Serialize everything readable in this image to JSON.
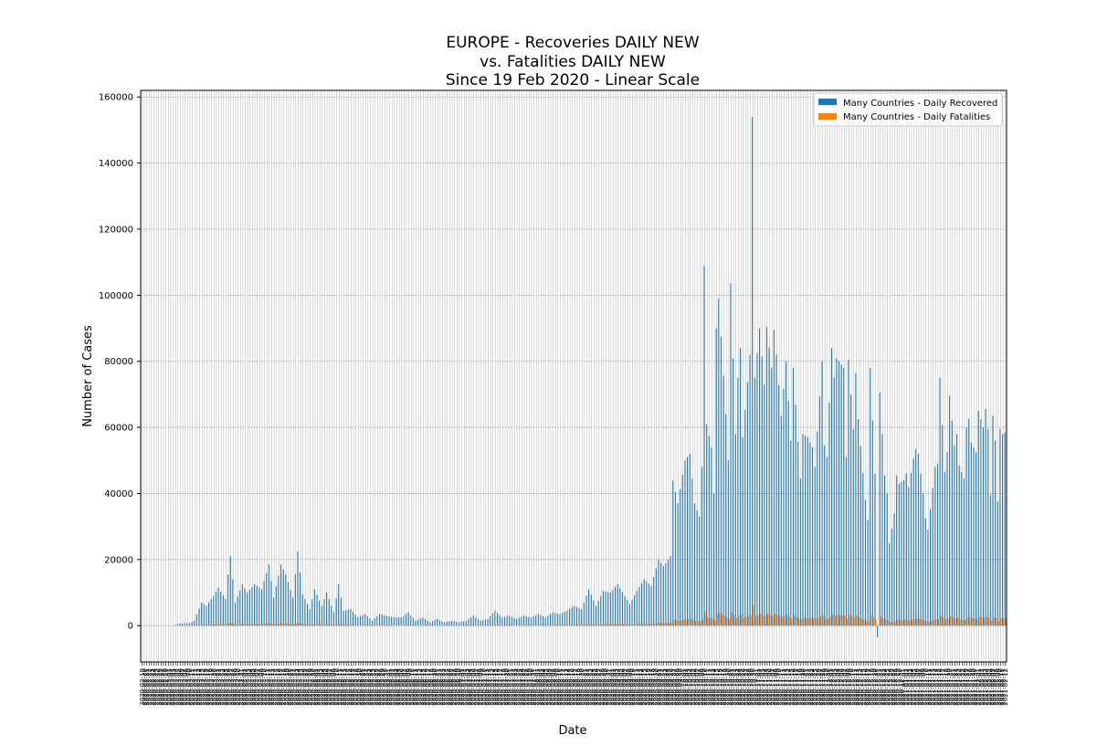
{
  "chart_data": {
    "type": "bar",
    "title_lines": [
      "EUROPE - Recoveries DAILY NEW",
      "vs. Fatalities DAILY NEW",
      "Since 19 Feb 2020 - Linear Scale"
    ],
    "xlabel": "Date",
    "ylabel": "Number of Cases",
    "ylim": [
      -11000,
      162000
    ],
    "yticks": [
      0,
      20000,
      40000,
      60000,
      80000,
      100000,
      120000,
      140000,
      160000
    ],
    "ytick_labels": [
      "0",
      "20000",
      "40000",
      "60000",
      "80000",
      "100000",
      "120000",
      "140000",
      "160000"
    ],
    "grid": true,
    "legend_position": "top-right",
    "start_date": "2020-02-19",
    "colors": {
      "recovered": "#1f77b4",
      "fatalities": "#ff7f0e",
      "grid": "#b0b0b0"
    },
    "series": [
      {
        "name": "Many Countries - Daily Recovered",
        "color": "#1f77b4",
        "values": [
          0,
          0,
          0,
          0,
          0,
          0,
          0,
          0,
          0,
          0,
          0,
          0,
          0,
          0,
          0,
          0,
          0,
          0,
          0,
          0,
          0,
          0,
          0,
          0,
          0,
          0,
          0,
          0,
          0,
          0,
          0,
          0,
          0,
          0,
          0,
          0,
          0,
          0,
          0,
          0,
          0,
          0,
          0,
          0,
          0,
          0,
          0,
          0,
          0,
          0,
          0,
          0,
          0,
          0,
          0,
          0,
          0,
          0,
          0,
          0,
          0,
          0,
          0,
          0,
          0,
          0,
          0,
          0,
          0,
          0,
          0,
          0,
          0,
          0,
          0,
          0,
          0,
          0,
          0,
          0,
          0,
          0,
          0,
          0,
          0,
          0,
          0,
          0,
          0,
          0,
          0,
          0,
          0,
          0,
          0,
          0,
          0,
          0,
          0,
          0,
          0,
          0,
          0,
          0,
          0,
          0,
          0,
          0,
          0,
          0,
          0,
          0,
          0,
          0,
          0,
          0,
          0,
          0,
          0,
          0,
          0,
          0,
          0,
          0,
          0,
          0,
          0,
          0,
          0,
          0,
          0,
          0,
          0,
          0,
          0,
          0,
          0,
          0,
          0,
          0,
          0,
          0,
          0,
          0,
          0,
          0,
          0,
          0,
          0,
          0,
          0,
          0,
          0,
          0,
          0,
          0,
          0,
          0,
          0,
          0,
          0,
          0,
          0,
          0,
          0,
          0,
          0,
          0,
          0,
          0,
          0,
          0,
          0,
          0,
          0,
          0,
          0,
          0,
          0,
          0,
          0,
          0,
          0,
          0,
          0,
          0,
          0,
          0,
          0,
          0,
          0,
          0,
          0,
          0,
          0,
          0,
          0,
          0,
          0,
          0,
          0,
          0,
          0,
          0,
          0,
          0,
          0,
          0,
          0,
          0,
          0,
          0,
          0,
          0,
          0,
          0,
          0,
          0,
          0,
          0,
          0,
          0,
          0,
          0,
          0,
          0,
          0,
          0,
          0,
          0,
          0,
          0,
          0,
          0,
          0,
          0,
          0,
          0,
          0,
          0,
          0,
          0,
          0,
          0,
          0,
          0,
          0,
          0,
          0,
          0,
          0,
          0,
          0,
          0,
          0,
          0,
          0,
          0,
          0,
          0,
          0,
          0,
          0,
          0,
          0,
          0,
          0,
          0,
          0,
          0,
          0,
          0,
          0,
          0,
          0,
          0,
          0,
          0,
          0,
          0,
          0,
          0,
          0,
          0,
          0,
          0,
          0,
          0,
          0,
          0,
          0,
          0,
          0,
          0,
          0,
          0,
          0,
          0,
          0,
          0,
          0,
          0,
          0,
          0,
          0,
          0,
          0,
          0,
          0,
          0,
          0,
          0,
          0,
          0,
          0,
          0,
          0,
          0,
          0,
          0,
          0,
          0,
          0,
          0,
          0,
          0,
          0,
          0,
          0,
          0,
          0,
          0,
          0,
          0,
          0,
          0,
          0,
          0,
          0,
          0,
          0,
          0,
          0,
          0,
          0,
          0,
          0,
          0,
          0,
          0,
          0,
          0,
          0,
          0,
          0,
          0,
          0,
          0,
          0,
          0,
          0,
          0,
          0,
          0,
          0,
          0,
          0,
          0,
          0,
          0,
          0,
          0,
          0,
          0,
          0,
          0,
          0,
          0,
          0,
          0,
          0,
          0,
          0,
          0,
          0,
          0,
          0,
          0,
          0,
          0,
          0,
          0,
          0,
          0,
          0,
          0,
          0,
          0,
          0,
          0,
          0,
          0,
          0,
          0,
          0,
          0,
          0,
          0,
          0,
          0,
          0,
          0,
          0,
          0,
          0,
          0,
          0,
          0,
          0,
          0,
          0,
          0,
          0,
          0,
          0,
          0,
          0,
          0,
          0,
          0,
          0,
          0,
          0
        ]
      },
      {
        "name": "Many Countries - Daily Fatalities",
        "color": "#ff7f0e",
        "values": []
      }
    ],
    "recovered_anchor_points": [
      [
        0,
        0
      ],
      [
        13,
        0
      ],
      [
        16,
        600
      ],
      [
        20,
        800
      ],
      [
        22,
        1500
      ],
      [
        25,
        7000
      ],
      [
        27,
        6000
      ],
      [
        30,
        9000
      ],
      [
        32,
        11500
      ],
      [
        35,
        8000
      ],
      [
        36,
        15500
      ],
      [
        37,
        21000
      ],
      [
        39,
        7000
      ],
      [
        42,
        12500
      ],
      [
        44,
        10000
      ],
      [
        47,
        12500
      ],
      [
        50,
        11000
      ],
      [
        53,
        18500
      ],
      [
        55,
        8500
      ],
      [
        58,
        18500
      ],
      [
        60,
        15500
      ],
      [
        63,
        8500
      ],
      [
        65,
        22500
      ],
      [
        67,
        9500
      ],
      [
        70,
        5000
      ],
      [
        72,
        11000
      ],
      [
        75,
        6000
      ],
      [
        77,
        10000
      ],
      [
        80,
        4000
      ],
      [
        82,
        12500
      ],
      [
        84,
        4500
      ],
      [
        87,
        5000
      ],
      [
        90,
        2500
      ],
      [
        93,
        3500
      ],
      [
        96,
        1500
      ],
      [
        99,
        3500
      ],
      [
        102,
        3000
      ],
      [
        105,
        2500
      ],
      [
        108,
        2500
      ],
      [
        111,
        4000
      ],
      [
        114,
        1500
      ],
      [
        117,
        2500
      ],
      [
        120,
        1000
      ],
      [
        123,
        2000
      ],
      [
        126,
        1000
      ],
      [
        129,
        1500
      ],
      [
        132,
        1000
      ],
      [
        135,
        1500
      ],
      [
        138,
        3000
      ],
      [
        141,
        1500
      ],
      [
        144,
        2000
      ],
      [
        147,
        4500
      ],
      [
        150,
        2500
      ],
      [
        153,
        3000
      ],
      [
        156,
        2000
      ],
      [
        159,
        3000
      ],
      [
        162,
        2500
      ],
      [
        165,
        3500
      ],
      [
        168,
        2500
      ],
      [
        171,
        4000
      ],
      [
        174,
        3500
      ],
      [
        177,
        4500
      ],
      [
        180,
        6000
      ],
      [
        183,
        5000
      ],
      [
        186,
        11000
      ],
      [
        189,
        6000
      ],
      [
        192,
        10500
      ],
      [
        195,
        10000
      ],
      [
        198,
        12500
      ],
      [
        201,
        9000
      ],
      [
        203,
        6500
      ],
      [
        206,
        10500
      ],
      [
        209,
        14000
      ],
      [
        212,
        12000
      ],
      [
        215,
        20000
      ],
      [
        217,
        18000
      ],
      [
        220,
        21000
      ],
      [
        221,
        44000
      ],
      [
        223,
        37000
      ],
      [
        226,
        50000
      ],
      [
        228,
        52000
      ],
      [
        230,
        37000
      ],
      [
        232,
        33000
      ],
      [
        233,
        48000
      ],
      [
        234,
        109000
      ],
      [
        235,
        61000
      ],
      [
        237,
        54000
      ],
      [
        238,
        40000
      ],
      [
        239,
        90000
      ],
      [
        240,
        99000
      ],
      [
        243,
        64000
      ],
      [
        244,
        50000
      ],
      [
        245,
        103500
      ],
      [
        247,
        58000
      ],
      [
        248,
        75000
      ],
      [
        249,
        84000
      ],
      [
        250,
        57000
      ],
      [
        253,
        82000
      ],
      [
        254,
        154000
      ],
      [
        255,
        75000
      ],
      [
        257,
        90000
      ],
      [
        259,
        73000
      ],
      [
        260,
        90500
      ],
      [
        262,
        78000
      ],
      [
        263,
        89500
      ],
      [
        264,
        82000
      ],
      [
        266,
        63500
      ],
      [
        268,
        80000
      ],
      [
        270,
        56000
      ],
      [
        271,
        78000
      ],
      [
        274,
        44500
      ],
      [
        275,
        58000
      ],
      [
        277,
        57000
      ],
      [
        279,
        54000
      ],
      [
        280,
        48000
      ],
      [
        283,
        80000
      ],
      [
        284,
        54500
      ],
      [
        285,
        51000
      ],
      [
        287,
        84000
      ],
      [
        288,
        75000
      ],
      [
        289,
        81000
      ],
      [
        292,
        78000
      ],
      [
        293,
        51000
      ],
      [
        294,
        80500
      ],
      [
        296,
        59500
      ],
      [
        297,
        76500
      ],
      [
        298,
        62500
      ],
      [
        301,
        38000
      ],
      [
        302,
        32000
      ],
      [
        303,
        78000
      ],
      [
        305,
        46000
      ],
      [
        306,
        -3500
      ],
      [
        307,
        70500
      ],
      [
        309,
        45500
      ],
      [
        310,
        40000
      ],
      [
        311,
        25000
      ],
      [
        313,
        34000
      ],
      [
        314,
        45500
      ],
      [
        315,
        43000
      ],
      [
        317,
        44000
      ],
      [
        318,
        46000
      ],
      [
        319,
        42000
      ],
      [
        321,
        50500
      ],
      [
        322,
        53500
      ],
      [
        323,
        52000
      ],
      [
        325,
        40000
      ],
      [
        326,
        32500
      ],
      [
        327,
        29000
      ],
      [
        330,
        48000
      ],
      [
        331,
        49000
      ],
      [
        332,
        75000
      ],
      [
        334,
        46500
      ],
      [
        335,
        52500
      ],
      [
        336,
        69500
      ],
      [
        338,
        54500
      ],
      [
        339,
        58000
      ],
      [
        340,
        48500
      ],
      [
        342,
        44500
      ],
      [
        343,
        60000
      ],
      [
        344,
        62500
      ],
      [
        345,
        55500
      ],
      [
        347,
        52500
      ],
      [
        348,
        65000
      ],
      [
        350,
        60000
      ],
      [
        351,
        65500
      ],
      [
        352,
        59500
      ],
      [
        353,
        39500
      ],
      [
        354,
        63500
      ],
      [
        355,
        56000
      ],
      [
        356,
        37500
      ],
      [
        357,
        59500
      ],
      [
        358,
        58000
      ],
      [
        359,
        58500
      ]
    ],
    "n_days": 360
  }
}
